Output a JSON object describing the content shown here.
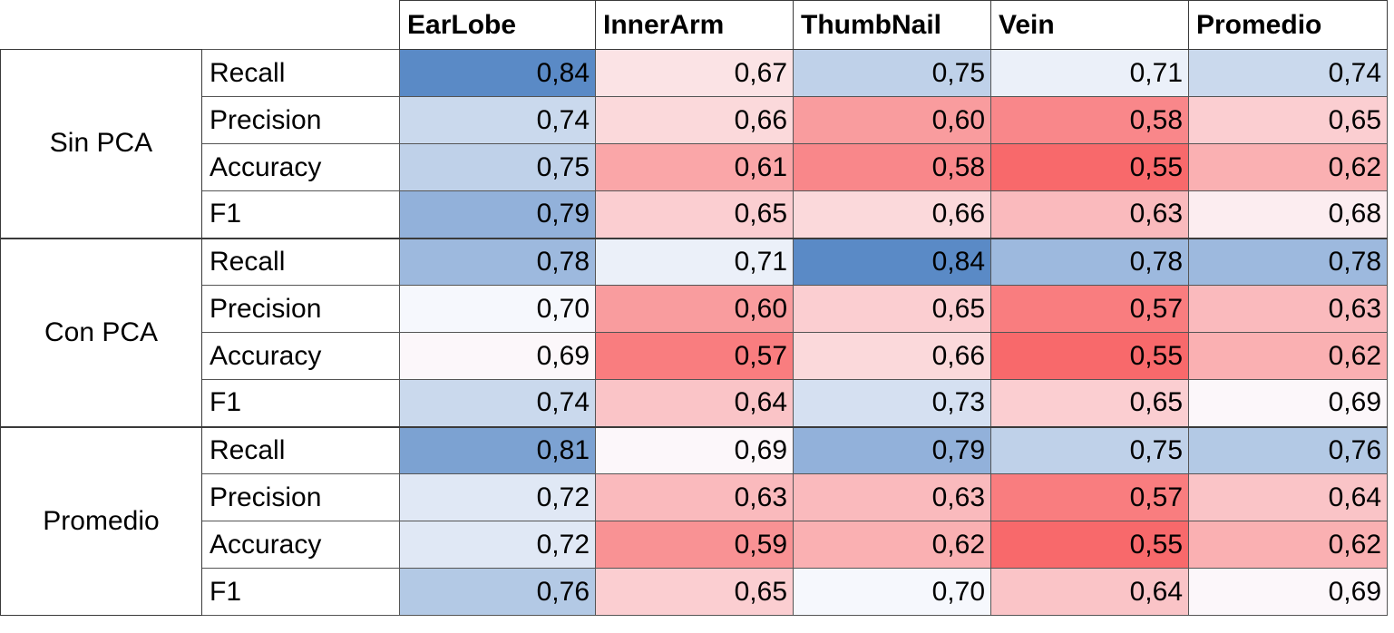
{
  "chart_data": {
    "type": "heatmap",
    "columns": [
      "EarLobe",
      "InnerArm",
      "ThumbNail",
      "Vein",
      "Promedio"
    ],
    "groups": [
      {
        "label": "Sin PCA",
        "rows": [
          {
            "metric": "Recall",
            "values": [
              "0,84",
              "0,67",
              "0,75",
              "0,71",
              "0,74"
            ]
          },
          {
            "metric": "Precision",
            "values": [
              "0,74",
              "0,66",
              "0,60",
              "0,58",
              "0,65"
            ]
          },
          {
            "metric": "Accuracy",
            "values": [
              "0,75",
              "0,61",
              "0,58",
              "0,55",
              "0,62"
            ]
          },
          {
            "metric": "F1",
            "values": [
              "0,79",
              "0,65",
              "0,66",
              "0,63",
              "0,68"
            ]
          }
        ]
      },
      {
        "label": "Con PCA",
        "rows": [
          {
            "metric": "Recall",
            "values": [
              "0,78",
              "0,71",
              "0,84",
              "0,78",
              "0,78"
            ]
          },
          {
            "metric": "Precision",
            "values": [
              "0,70",
              "0,60",
              "0,65",
              "0,57",
              "0,63"
            ]
          },
          {
            "metric": "Accuracy",
            "values": [
              "0,69",
              "0,57",
              "0,66",
              "0,55",
              "0,62"
            ]
          },
          {
            "metric": "F1",
            "values": [
              "0,74",
              "0,64",
              "0,73",
              "0,65",
              "0,69"
            ]
          }
        ]
      },
      {
        "label": "Promedio",
        "rows": [
          {
            "metric": "Recall",
            "values": [
              "0,81",
              "0,69",
              "0,79",
              "0,75",
              "0,76"
            ]
          },
          {
            "metric": "Precision",
            "values": [
              "0,72",
              "0,63",
              "0,63",
              "0,57",
              "0,64"
            ]
          },
          {
            "metric": "Accuracy",
            "values": [
              "0,72",
              "0,59",
              "0,62",
              "0,55",
              "0,62"
            ]
          },
          {
            "metric": "F1",
            "values": [
              "0,76",
              "0,65",
              "0,70",
              "0,64",
              "0,69"
            ]
          }
        ]
      }
    ],
    "color_scale": {
      "low": "#f8696b",
      "mid": "#fcfcff",
      "high": "#5a8ac6"
    }
  }
}
